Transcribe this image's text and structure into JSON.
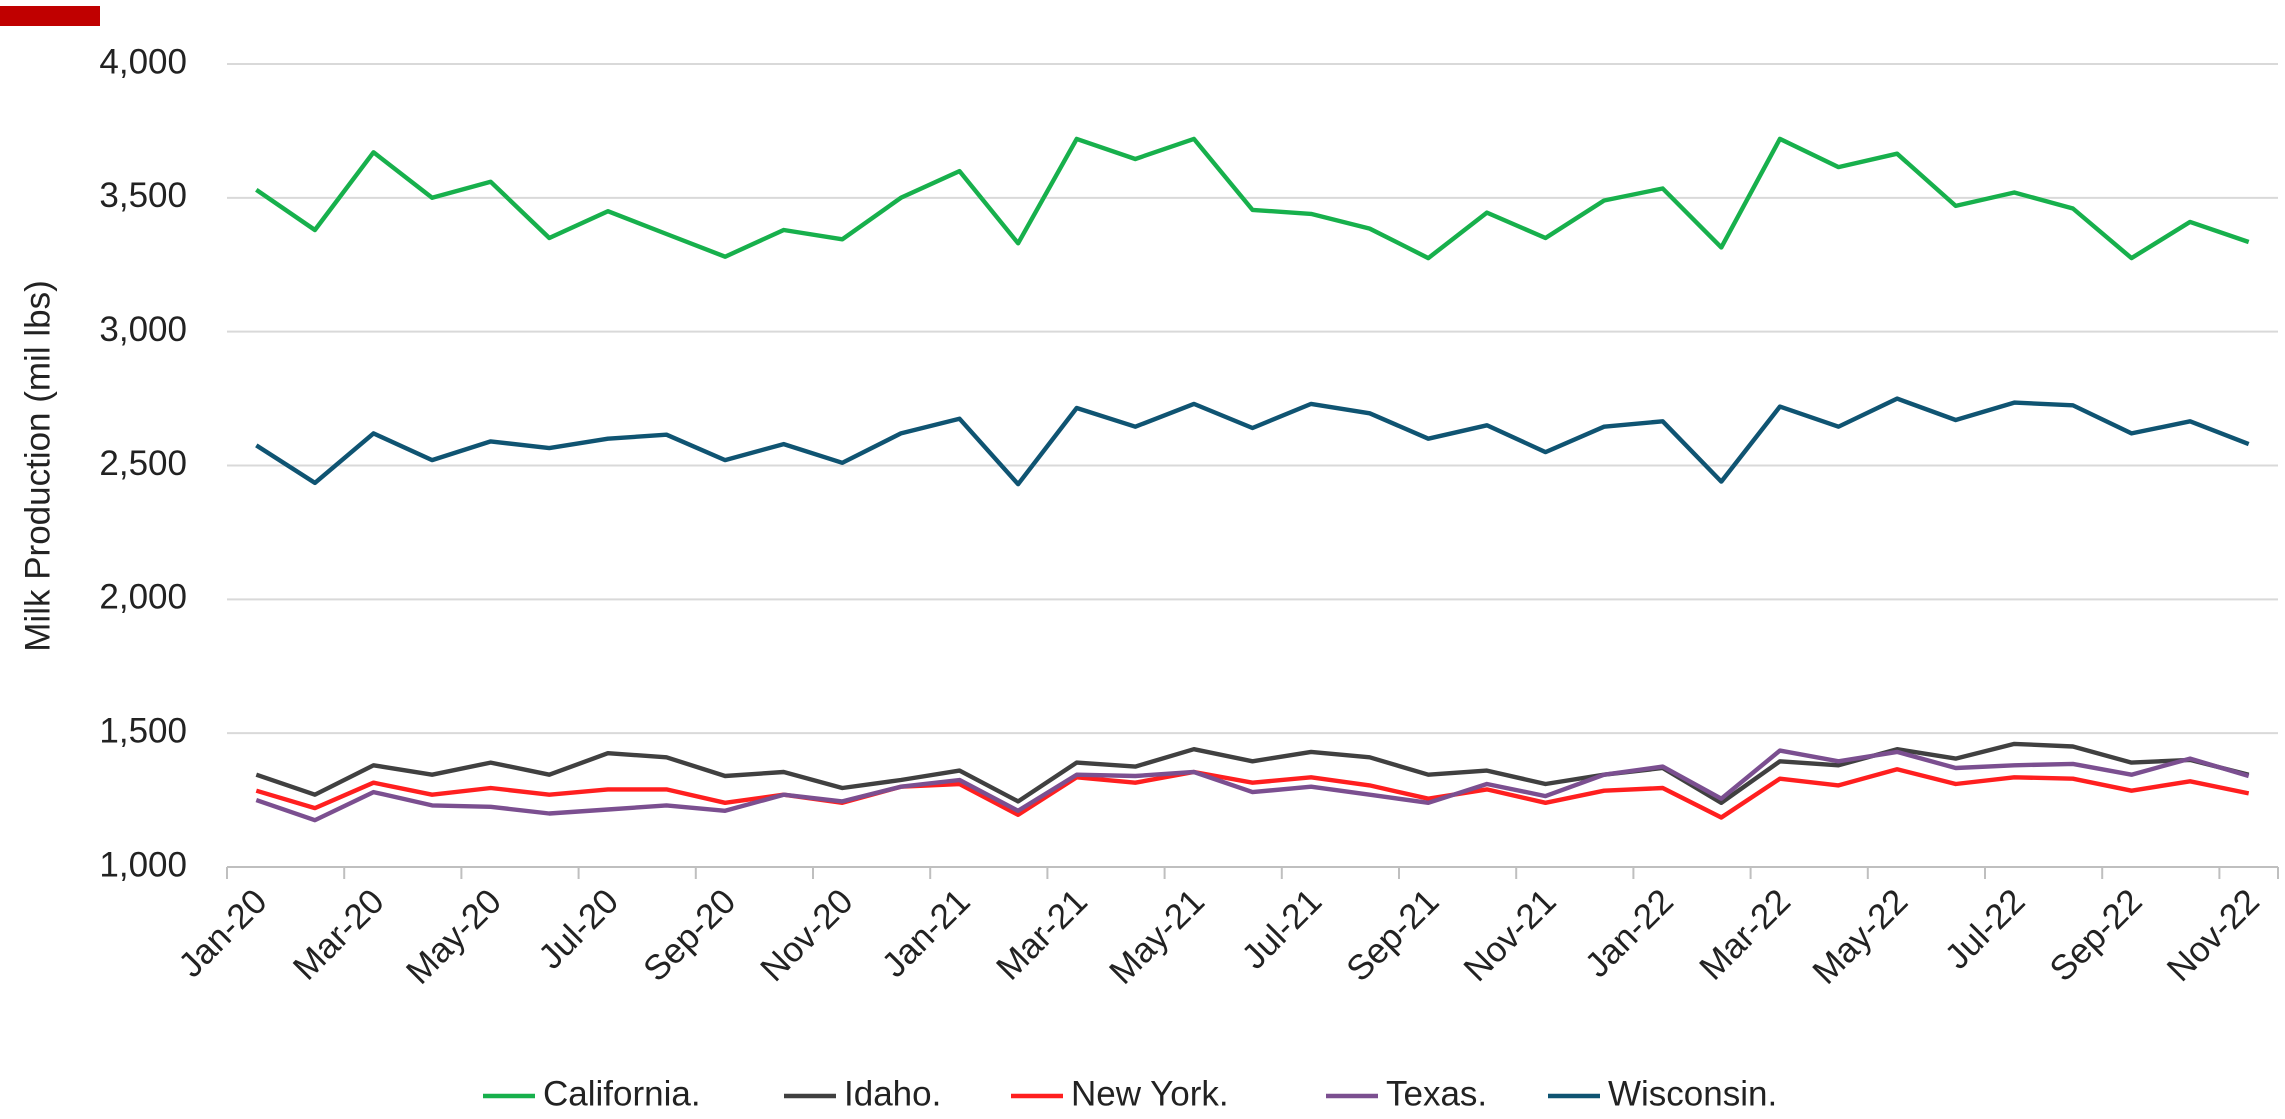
{
  "chart_data": {
    "type": "line",
    "y_label": "Milk Production (mil lbs)",
    "categories": [
      "Jan-20",
      null,
      "Mar-20",
      null,
      "May-20",
      null,
      "Jul-20",
      null,
      "Sep-20",
      null,
      "Nov-20",
      null,
      "Jan-21",
      null,
      "Mar-21",
      null,
      "May-21",
      null,
      "Jul-21",
      null,
      "Sep-21",
      null,
      "Nov-21",
      null,
      "Jan-22",
      null,
      "Mar-22",
      null,
      "May-22",
      null,
      "Jul-22",
      null,
      "Sep-22",
      null,
      "Nov-22"
    ],
    "series": [
      {
        "name": "California.",
        "color": "#17b04c",
        "values": [
          3530,
          3380,
          3670,
          3500,
          3560,
          3350,
          3450,
          3365,
          3280,
          3380,
          3345,
          3500,
          3600,
          3330,
          3720,
          3645,
          3720,
          3455,
          3440,
          3385,
          3275,
          3445,
          3350,
          3490,
          3535,
          3315,
          3720,
          3615,
          3665,
          3470,
          3520,
          3460,
          3275,
          3410,
          3335
        ]
      },
      {
        "name": "Idaho.",
        "color": "#404040",
        "values": [
          1345,
          1270,
          1380,
          1345,
          1390,
          1345,
          1425,
          1410,
          1340,
          1355,
          1295,
          1325,
          1360,
          1245,
          1390,
          1375,
          1440,
          1395,
          1430,
          1410,
          1345,
          1360,
          1310,
          1345,
          1370,
          1240,
          1395,
          1380,
          1440,
          1405,
          1460,
          1450,
          1390,
          1400,
          1345
        ]
      },
      {
        "name": "New York.",
        "color": "#ff1f1f",
        "values": [
          1285,
          1220,
          1315,
          1270,
          1295,
          1270,
          1290,
          1290,
          1240,
          1270,
          1240,
          1300,
          1310,
          1195,
          1335,
          1315,
          1355,
          1315,
          1335,
          1305,
          1255,
          1290,
          1240,
          1285,
          1295,
          1185,
          1330,
          1305,
          1365,
          1310,
          1335,
          1330,
          1285,
          1320,
          1275
        ]
      },
      {
        "name": "Texas.",
        "color": "#7b4f90",
        "values": [
          1250,
          1175,
          1280,
          1230,
          1225,
          1200,
          1215,
          1230,
          1210,
          1270,
          1245,
          1300,
          1325,
          1210,
          1345,
          1340,
          1355,
          1280,
          1300,
          1270,
          1240,
          1310,
          1265,
          1345,
          1375,
          1255,
          1435,
          1395,
          1430,
          1370,
          1380,
          1385,
          1345,
          1405,
          1340
        ]
      },
      {
        "name": "Wisconsin.",
        "color": "#0f5472",
        "values": [
          2575,
          2435,
          2620,
          2520,
          2590,
          2565,
          2600,
          2615,
          2520,
          2580,
          2510,
          2620,
          2675,
          2430,
          2715,
          2645,
          2730,
          2640,
          2730,
          2695,
          2600,
          2650,
          2550,
          2645,
          2665,
          2440,
          2720,
          2645,
          2750,
          2670,
          2735,
          2725,
          2620,
          2665,
          2580
        ]
      }
    ],
    "ylim": [
      1000,
      4000
    ],
    "yticks": [
      {
        "value": 1000,
        "label": "1,000"
      },
      {
        "value": 1500,
        "label": "1,500"
      },
      {
        "value": 2000,
        "label": "2,000"
      },
      {
        "value": 2500,
        "label": "2,500"
      },
      {
        "value": 3000,
        "label": "3,000"
      },
      {
        "value": 3500,
        "label": "3,500"
      },
      {
        "value": 4000,
        "label": "4,000"
      }
    ],
    "grid": true,
    "legend": "bottom"
  }
}
